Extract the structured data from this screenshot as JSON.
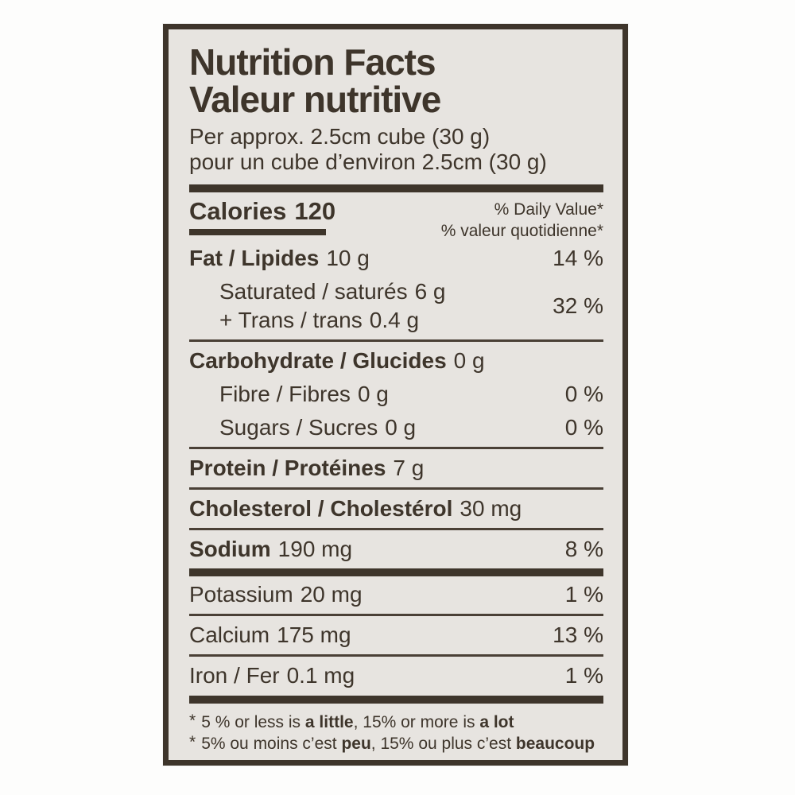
{
  "colors": {
    "ink": "#3e352b",
    "label_bg": "#e7e4e0",
    "page_bg": "#fdfdfc"
  },
  "header": {
    "title_en": "Nutrition Facts",
    "title_fr": "Valeur nutritive",
    "serving_en": "Per approx. 2.5cm cube (30 g)",
    "serving_fr": "pour un cube d’environ 2.5cm (30 g)"
  },
  "calories": {
    "label": "Calories",
    "value": "120"
  },
  "dv_header": {
    "en": "% Daily Value*",
    "fr": "% valeur quotidienne*"
  },
  "rows": {
    "fat": {
      "label": "Fat / Lipides",
      "value": "10 g",
      "dv": "14 %"
    },
    "saturated": {
      "label": "Saturated / saturés",
      "value": "6 g"
    },
    "trans": {
      "label": "+  Trans / trans",
      "value": "0.4 g"
    },
    "sat_trans_dv": "32 %",
    "carbohydrate": {
      "label": "Carbohydrate / Glucides",
      "value": "0 g"
    },
    "fibre": {
      "label": "Fibre / Fibres",
      "value": "0 g",
      "dv": "0 %"
    },
    "sugars": {
      "label": "Sugars / Sucres",
      "value": "0 g",
      "dv": "0 %"
    },
    "protein": {
      "label": "Protein / Protéines",
      "value": "7 g"
    },
    "cholesterol": {
      "label": "Cholesterol / Cholestérol",
      "value": "30 mg"
    },
    "sodium": {
      "label": "Sodium",
      "value": "190 mg",
      "dv": "8 %"
    },
    "potassium": {
      "label": "Potassium",
      "value": "20 mg",
      "dv": "1 %"
    },
    "calcium": {
      "label": "Calcium",
      "value": "175 mg",
      "dv": "13 %"
    },
    "iron": {
      "label": "Iron / Fer",
      "value": "0.1 mg",
      "dv": "1 %"
    }
  },
  "footnotes": {
    "en": {
      "star": "*",
      "p1": "5 % or less is ",
      "b1": "a little",
      "p2": ", 15% or more is ",
      "b2": "a lot"
    },
    "fr": {
      "star": "*",
      "p1": "5% ou moins c’est ",
      "b1": "peu",
      "p2": ", 15% ou plus c’est ",
      "b2": "beaucoup"
    }
  }
}
